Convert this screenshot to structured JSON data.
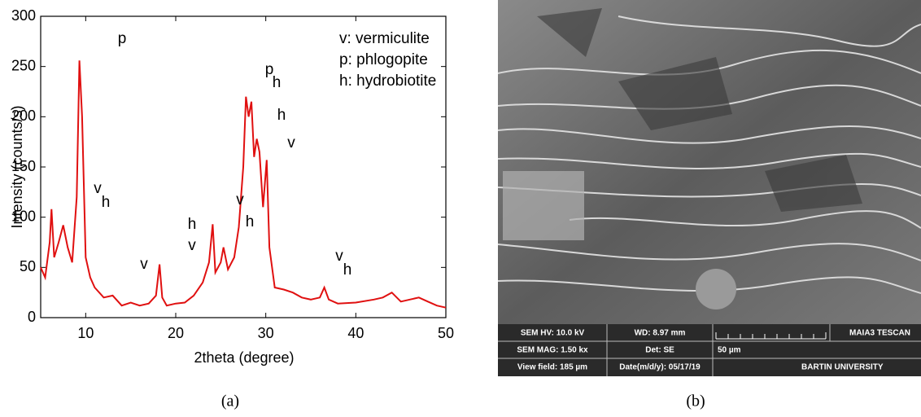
{
  "chart_data": {
    "type": "line",
    "xlabel": "2theta (degree)",
    "ylabel": "Intensity (counts/s)",
    "xlim": [
      5,
      50
    ],
    "ylim": [
      0,
      300
    ],
    "xticks": [
      10,
      20,
      30,
      40,
      50
    ],
    "yticks": [
      0,
      50,
      100,
      150,
      200,
      250,
      300
    ],
    "series": [
      {
        "color": "#e01010",
        "x": [
          5,
          5.5,
          6.0,
          6.2,
          6.5,
          7.0,
          7.5,
          8.0,
          8.5,
          9.0,
          9.3,
          9.6,
          10.0,
          10.5,
          11,
          12,
          13,
          14,
          15,
          16,
          17,
          17.8,
          18.2,
          18.5,
          19,
          20,
          21,
          22,
          23,
          23.7,
          24.1,
          24.4,
          25.0,
          25.3,
          25.8,
          26.5,
          27.0,
          27.5,
          27.8,
          28.1,
          28.4,
          28.7,
          29.0,
          29.3,
          29.7,
          30.1,
          30.4,
          31,
          32,
          33,
          34,
          35,
          36,
          36.5,
          37,
          38,
          40,
          42,
          43,
          44,
          45,
          46,
          47,
          48,
          49,
          50
        ],
        "values": [
          50,
          40,
          75,
          108,
          60,
          75,
          92,
          70,
          55,
          120,
          256,
          200,
          60,
          40,
          30,
          20,
          22,
          12,
          15,
          12,
          14,
          22,
          53,
          20,
          12,
          14,
          15,
          22,
          35,
          55,
          93,
          45,
          55,
          70,
          48,
          60,
          90,
          150,
          220,
          200,
          215,
          160,
          178,
          165,
          110,
          157,
          70,
          30,
          28,
          25,
          20,
          18,
          20,
          30,
          18,
          14,
          15,
          18,
          20,
          25,
          16,
          18,
          20,
          16,
          12,
          10
        ]
      }
    ],
    "legend_texts": [
      "v: vermiculite",
      "p: phlogopite",
      "h: hydrobiotite"
    ],
    "annotations": [
      "p",
      "v",
      "h",
      "v",
      "h",
      "v",
      "v",
      "h",
      "p",
      "h",
      "h",
      "v",
      "v",
      "h"
    ]
  },
  "panel_labels": [
    "(a)",
    "(b)"
  ],
  "sem_info": [
    "SEM HV: 10.0 kV",
    "WD: 8.97 mm",
    "MAIA3 TESCAN",
    "SEM MAG: 1.50 kx",
    "Det: SE",
    "50 µm",
    "View field: 185 µm",
    "Date(m/d/y): 05/17/19",
    "BARTIN UNIVERSITY"
  ]
}
